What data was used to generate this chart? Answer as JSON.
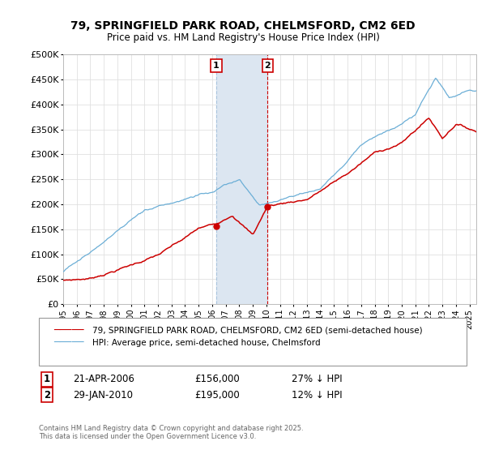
{
  "title": "79, SPRINGFIELD PARK ROAD, CHELMSFORD, CM2 6ED",
  "subtitle": "Price paid vs. HM Land Registry's House Price Index (HPI)",
  "ylabel_ticks": [
    "£0",
    "£50K",
    "£100K",
    "£150K",
    "£200K",
    "£250K",
    "£300K",
    "£350K",
    "£400K",
    "£450K",
    "£500K"
  ],
  "ytick_values": [
    0,
    50000,
    100000,
    150000,
    200000,
    250000,
    300000,
    350000,
    400000,
    450000,
    500000
  ],
  "hpi_color": "#6baed6",
  "price_color": "#cc0000",
  "transaction1": {
    "date": "21-APR-2006",
    "price": 156000,
    "label": "1",
    "year": 2006.3
  },
  "transaction2": {
    "date": "29-JAN-2010",
    "price": 195000,
    "label": "2",
    "year": 2010.08
  },
  "shade_color": "#dce6f1",
  "vline_color_1": "#aac4de",
  "vline_color_2": "#cc0000",
  "footer": "Contains HM Land Registry data © Crown copyright and database right 2025.\nThis data is licensed under the Open Government Licence v3.0.",
  "legend_line1": "79, SPRINGFIELD PARK ROAD, CHELMSFORD, CM2 6ED (semi-detached house)",
  "legend_line2": "HPI: Average price, semi-detached house, Chelmsford",
  "t1_info": [
    "21-APR-2006",
    "£156,000",
    "27% ↓ HPI"
  ],
  "t2_info": [
    "29-JAN-2010",
    "£195,000",
    "12% ↓ HPI"
  ],
  "xmin": 1995,
  "xmax": 2025.5,
  "ymin": 0,
  "ymax": 500000
}
